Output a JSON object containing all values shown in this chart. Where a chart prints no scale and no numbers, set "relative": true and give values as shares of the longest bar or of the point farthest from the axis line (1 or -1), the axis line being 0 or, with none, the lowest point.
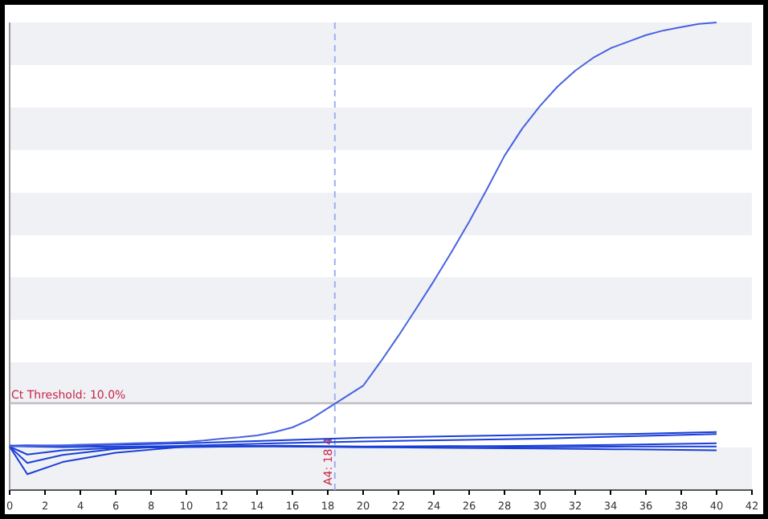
{
  "chart_data": {
    "type": "line",
    "relative": true,
    "tick_labels": "x",
    "xlim": [
      0,
      42
    ],
    "xticks": [
      0,
      2,
      4,
      6,
      8,
      10,
      12,
      14,
      16,
      18,
      20,
      22,
      24,
      26,
      28,
      30,
      32,
      34,
      36,
      38,
      40,
      42
    ],
    "series": [
      {
        "color": "#4763e0",
        "x": [
          0,
          1,
          2,
          3,
          4,
          5,
          6,
          7,
          8,
          9,
          10,
          11,
          12,
          13,
          14,
          15,
          16,
          17,
          18,
          19,
          20,
          21,
          22,
          23,
          24,
          25,
          26,
          27,
          28,
          29,
          30,
          31,
          32,
          33,
          34,
          35,
          36,
          37,
          38,
          39,
          40
        ],
        "values": [
          0.093,
          0.094,
          0.095,
          0.096,
          0.097,
          0.098,
          0.099,
          0.1,
          0.101,
          0.102,
          0.103,
          0.106,
          0.11,
          0.113,
          0.117,
          0.124,
          0.134,
          0.151,
          0.175,
          0.199,
          0.223,
          0.275,
          0.33,
          0.388,
          0.447,
          0.509,
          0.574,
          0.643,
          0.715,
          0.773,
          0.821,
          0.863,
          0.897,
          0.924,
          0.945,
          0.959,
          0.973,
          0.983,
          0.99,
          0.997,
          1.0
        ]
      },
      {
        "color": "#1a3fd6",
        "x": [
          0,
          1,
          3,
          6,
          10,
          15,
          20,
          25,
          30,
          35,
          40
        ],
        "values": [
          0.093,
          0.034,
          0.06,
          0.08,
          0.093,
          0.095,
          0.093,
          0.094,
          0.092,
          0.093,
          0.093
        ]
      },
      {
        "color": "#1a3fd6",
        "x": [
          0,
          1,
          3,
          6,
          10,
          15,
          20,
          25,
          30,
          35,
          40
        ],
        "values": [
          0.093,
          0.058,
          0.075,
          0.088,
          0.095,
          0.1,
          0.104,
          0.107,
          0.11,
          0.115,
          0.12
        ]
      },
      {
        "color": "#1a3fd6",
        "x": [
          0,
          1,
          3,
          6,
          10,
          15,
          20,
          25,
          30,
          35,
          40
        ],
        "values": [
          0.093,
          0.076,
          0.085,
          0.09,
          0.092,
          0.094,
          0.092,
          0.093,
          0.095,
          0.097,
          0.1
        ]
      },
      {
        "color": "#1a3fd6",
        "x": [
          0,
          1,
          3,
          6,
          10,
          15,
          20,
          25,
          30,
          35,
          40
        ],
        "values": [
          0.095,
          0.093,
          0.092,
          0.093,
          0.094,
          0.093,
          0.092,
          0.09,
          0.089,
          0.087,
          0.085
        ]
      },
      {
        "color": "#1a3fd6",
        "x": [
          0,
          1,
          3,
          6,
          10,
          15,
          20,
          25,
          30,
          35,
          40
        ],
        "values": [
          0.095,
          0.096,
          0.095,
          0.097,
          0.1,
          0.106,
          0.112,
          0.115,
          0.118,
          0.12,
          0.124
        ]
      }
    ],
    "ref_lines": [
      {
        "axis": "y",
        "value": 0.186,
        "color": "#b8b8b8"
      },
      {
        "axis": "x",
        "value": 18.4,
        "label": "A4: 18.4",
        "color": "#9fb0f0",
        "line_style": "dashed"
      }
    ],
    "annotations": [
      "Ct Threshold: 10.0%"
    ],
    "bands": [
      {
        "axis": "y",
        "from": 0,
        "to": 0.091,
        "color": "#f0f1f5"
      },
      {
        "axis": "y",
        "from": 0.182,
        "to": 0.273,
        "color": "#f0f1f5"
      },
      {
        "axis": "y",
        "from": 0.364,
        "to": 0.455,
        "color": "#f0f1f5"
      },
      {
        "axis": "y",
        "from": 0.545,
        "to": 0.636,
        "color": "#f0f1f5"
      },
      {
        "axis": "y",
        "from": 0.727,
        "to": 0.818,
        "color": "#f0f1f5"
      },
      {
        "axis": "y",
        "from": 0.909,
        "to": 1.0,
        "color": "#f0f1f5"
      }
    ]
  }
}
